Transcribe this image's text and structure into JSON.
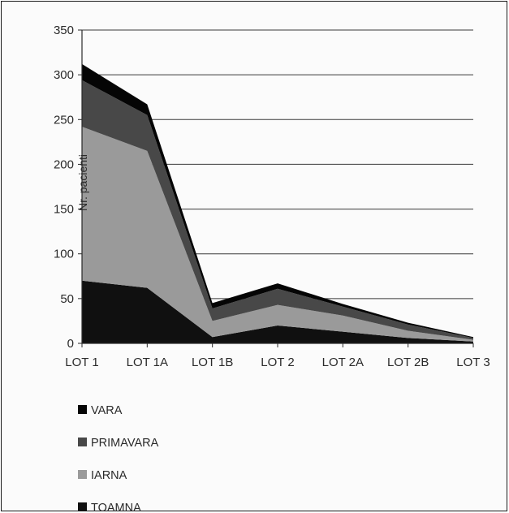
{
  "chart_data": {
    "type": "area",
    "stacked": true,
    "categories": [
      "LOT 1",
      "LOT 1A",
      "LOT 1B",
      "LOT 2",
      "LOT 2A",
      "LOT 2B",
      "LOT 3"
    ],
    "series": [
      {
        "name": "TOAMNA",
        "values": [
          70,
          62,
          7,
          20,
          13,
          6,
          2
        ],
        "color": "#101010"
      },
      {
        "name": "IARNA",
        "values": [
          172,
          153,
          18,
          23,
          18,
          8,
          2
        ],
        "color": "#9a9a9a"
      },
      {
        "name": "PRIMAVARA",
        "values": [
          52,
          40,
          14,
          18,
          10,
          7,
          2
        ],
        "color": "#484848"
      },
      {
        "name": "VARA",
        "values": [
          18,
          12,
          6,
          6,
          3,
          2,
          1
        ],
        "color": "#050505"
      }
    ],
    "legend_order": [
      "VARA",
      "PRIMAVARA",
      "IARNA",
      "TOAMNA"
    ],
    "ylabel": "Nr. pacienti",
    "xlabel": "",
    "ylim": [
      0,
      350
    ],
    "yticks": [
      0,
      50,
      100,
      150,
      200,
      250,
      300,
      350
    ],
    "grid": true,
    "legend_position": "bottom-left"
  }
}
